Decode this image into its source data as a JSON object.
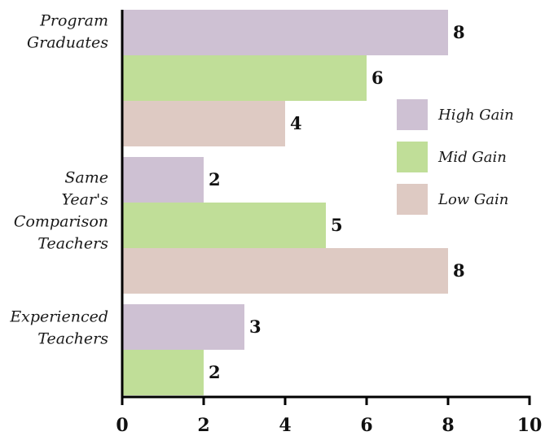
{
  "chart_data": {
    "type": "bar",
    "orientation": "horizontal",
    "categories": [
      [
        "Program",
        "Graduates"
      ],
      [
        "Same",
        "Year's",
        "Comparison",
        "Teachers"
      ],
      [
        "Experienced",
        "Teachers"
      ]
    ],
    "series": [
      {
        "name": "High Gain",
        "color": "#cec1d3",
        "values": [
          8,
          2,
          3
        ]
      },
      {
        "name": "Mid Gain",
        "color": "#c0de98",
        "values": [
          6,
          5,
          2
        ]
      },
      {
        "name": "Low Gain",
        "color": "#decac3",
        "values": [
          4,
          8,
          null
        ]
      }
    ],
    "xlim": [
      0,
      10
    ],
    "xticks": [
      0,
      2,
      4,
      6,
      8,
      10
    ],
    "title": "",
    "xlabel": "",
    "ylabel": "",
    "grid": false,
    "legend": "right"
  }
}
